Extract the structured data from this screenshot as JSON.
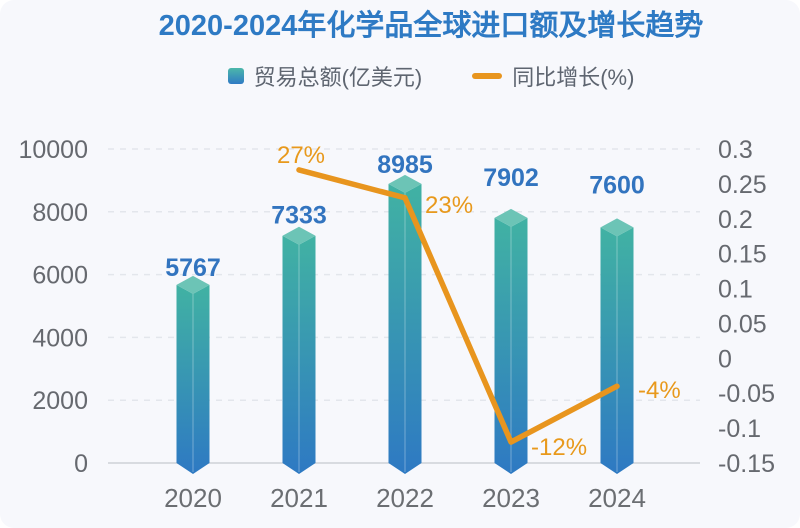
{
  "title": "2020-2024年化学品全球进口额及增长趋势",
  "legend": {
    "bar_label": "贸易总额(亿美元)",
    "line_label": "同比增长(%)"
  },
  "colors": {
    "background": "#f7f8fc",
    "title": "#2e7ac4",
    "bar_gradient_top": "#41b2a3",
    "bar_gradient_bottom": "#2e79c3",
    "bar_cap": "#6cc4b6",
    "line": "#e8951e",
    "bar_value_label": "#3274bf",
    "line_value_label": "#e8991c",
    "axis_text": "#66696f",
    "x_axis_text": "#6b6e72",
    "gridline": "#e3e6ec",
    "baseline": "#d8dbe0"
  },
  "chart_data": {
    "type": "bar",
    "combo": "bar+line",
    "title": "2020-2024年化学品全球进口额及增长趋势",
    "categories": [
      "2020",
      "2021",
      "2022",
      "2023",
      "2024"
    ],
    "series": [
      {
        "name": "贸易总额(亿美元)",
        "type": "bar",
        "axis": "left",
        "values": [
          5767,
          7333,
          8985,
          7902,
          7600
        ],
        "value_labels": [
          "5767",
          "7333",
          "8985",
          "7902",
          "7600"
        ]
      },
      {
        "name": "同比增长(%)",
        "type": "line",
        "axis": "right",
        "values": [
          null,
          0.27,
          0.23,
          -0.12,
          -0.04
        ],
        "point_labels": [
          "",
          "27%",
          "23%",
          "-12%",
          "-4%"
        ]
      }
    ],
    "left_axis": {
      "min": 0,
      "max": 10000,
      "ticks": [
        "0",
        "2000",
        "4000",
        "6000",
        "8000",
        "10000"
      ]
    },
    "right_axis": {
      "min": -0.15,
      "max": 0.3,
      "ticks": [
        "0.3",
        "0.25",
        "0.2",
        "0.15",
        "0.1",
        "0.05",
        "0",
        "-0.05",
        "-0.1",
        "-0.15"
      ]
    },
    "grid": "horizontal dashed",
    "legend_position": "top"
  }
}
